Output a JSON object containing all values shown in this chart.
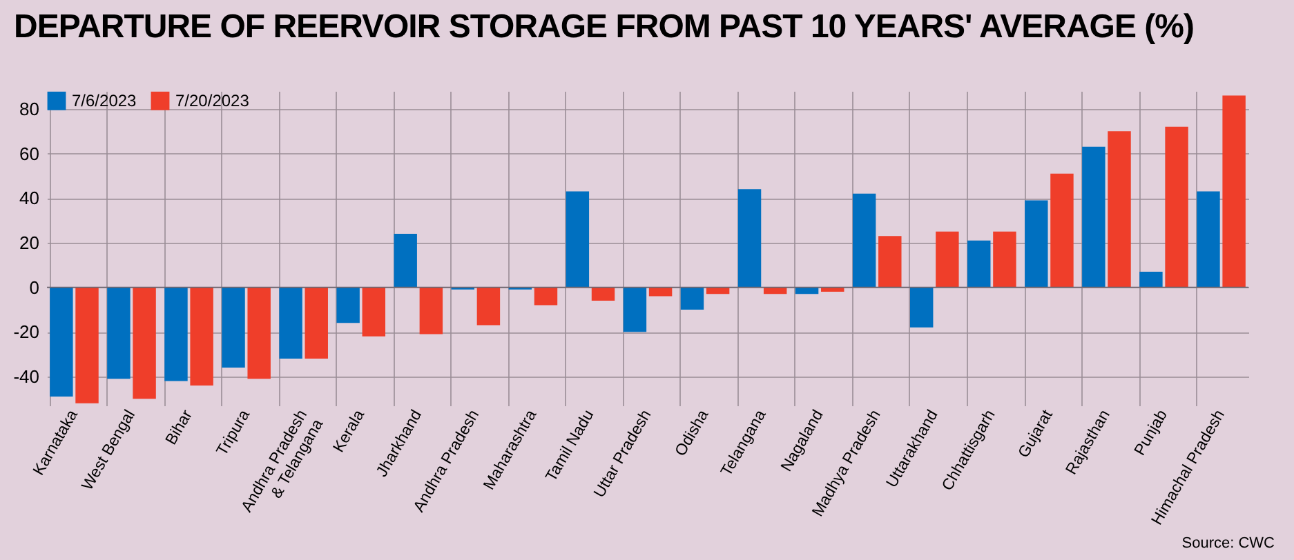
{
  "chart_data": {
    "type": "bar",
    "title": "DEPARTURE OF REERVOIR STORAGE FROM PAST 10 YEARS' AVERAGE (%)",
    "categories": [
      "Karnataka",
      "West Bengal",
      "Bihar",
      "Tripura",
      "Andhra Pradesh & Telangana",
      "Kerala",
      "Jharkhand",
      "Andhra Pradesh",
      "Maharashtra",
      "Tamil Nadu",
      "Uttar Pradesh",
      "Odisha",
      "Telangana",
      "Nagaland",
      "Madhya Pradesh",
      "Uttarakhand",
      "Chhattisgarh",
      "Gujarat",
      "Rajasthan",
      "Punjab",
      "Himachal Pradesh"
    ],
    "series": [
      {
        "name": "7/6/2023",
        "color": "#0070c0",
        "values": [
          -49,
          -41,
          -42,
          -36,
          -32,
          -16,
          24,
          -1,
          -1,
          43,
          -20,
          -10,
          44,
          -3,
          42,
          -18,
          21,
          39,
          63,
          7,
          43
        ]
      },
      {
        "name": "7/20/2023",
        "color": "#ef3e2a",
        "values": [
          -52,
          -50,
          -44,
          -41,
          -32,
          -22,
          -21,
          -17,
          -8,
          -6,
          -4,
          -3,
          -3,
          -2,
          23,
          25,
          25,
          51,
          70,
          72,
          86
        ]
      }
    ],
    "ylim": [
      -53,
      88
    ],
    "yticks": [
      -40,
      -20,
      0,
      20,
      40,
      60,
      80
    ],
    "grid": true,
    "legend": "top left",
    "annotations": [
      "Source: CWC"
    ]
  }
}
